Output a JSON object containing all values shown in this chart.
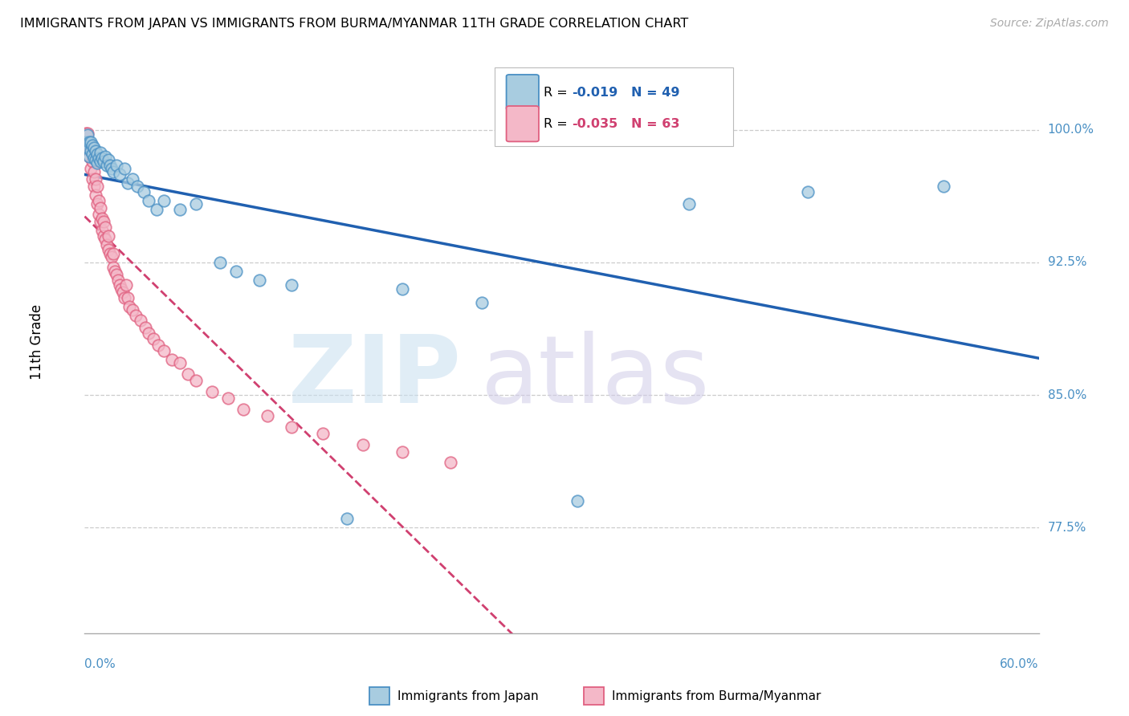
{
  "title": "IMMIGRANTS FROM JAPAN VS IMMIGRANTS FROM BURMA/MYANMAR 11TH GRADE CORRELATION CHART",
  "source": "Source: ZipAtlas.com",
  "ylabel": "11th Grade",
  "yaxis_labels": [
    "100.0%",
    "92.5%",
    "85.0%",
    "77.5%"
  ],
  "yaxis_values": [
    1.0,
    0.925,
    0.85,
    0.775
  ],
  "xmin": 0.0,
  "xmax": 0.6,
  "ymin": 0.715,
  "ymax": 1.045,
  "legend_r_japan": "-0.019",
  "legend_n_japan": "49",
  "legend_r_burma": "-0.035",
  "legend_n_burma": "63",
  "color_japan_fill": "#a8cce0",
  "color_japan_edge": "#4a90c4",
  "color_burma_fill": "#f4b8c8",
  "color_burma_edge": "#e06080",
  "color_japan_line": "#2060b0",
  "color_burma_line": "#d04070",
  "label_color": "#4a90c4",
  "japan_x": [
    0.001,
    0.002,
    0.002,
    0.003,
    0.003,
    0.004,
    0.004,
    0.005,
    0.005,
    0.006,
    0.006,
    0.007,
    0.007,
    0.008,
    0.008,
    0.009,
    0.01,
    0.01,
    0.011,
    0.012,
    0.013,
    0.014,
    0.015,
    0.016,
    0.017,
    0.018,
    0.02,
    0.022,
    0.025,
    0.027,
    0.03,
    0.033,
    0.037,
    0.04,
    0.045,
    0.05,
    0.06,
    0.07,
    0.085,
    0.095,
    0.11,
    0.13,
    0.165,
    0.2,
    0.25,
    0.31,
    0.38,
    0.455,
    0.54
  ],
  "japan_y": [
    0.993,
    0.99,
    0.997,
    0.985,
    0.993,
    0.988,
    0.993,
    0.986,
    0.991,
    0.984,
    0.99,
    0.983,
    0.988,
    0.981,
    0.986,
    0.984,
    0.982,
    0.987,
    0.984,
    0.982,
    0.985,
    0.98,
    0.983,
    0.98,
    0.978,
    0.976,
    0.98,
    0.975,
    0.978,
    0.97,
    0.972,
    0.968,
    0.965,
    0.96,
    0.955,
    0.96,
    0.955,
    0.958,
    0.925,
    0.92,
    0.915,
    0.912,
    0.78,
    0.91,
    0.902,
    0.79,
    0.958,
    0.965,
    0.968
  ],
  "burma_x": [
    0.001,
    0.002,
    0.002,
    0.003,
    0.003,
    0.004,
    0.004,
    0.005,
    0.005,
    0.006,
    0.006,
    0.007,
    0.007,
    0.008,
    0.008,
    0.009,
    0.009,
    0.01,
    0.01,
    0.011,
    0.011,
    0.012,
    0.012,
    0.013,
    0.013,
    0.014,
    0.015,
    0.015,
    0.016,
    0.017,
    0.018,
    0.018,
    0.019,
    0.02,
    0.021,
    0.022,
    0.023,
    0.024,
    0.025,
    0.026,
    0.027,
    0.028,
    0.03,
    0.032,
    0.035,
    0.038,
    0.04,
    0.043,
    0.046,
    0.05,
    0.055,
    0.06,
    0.065,
    0.07,
    0.08,
    0.09,
    0.1,
    0.115,
    0.13,
    0.15,
    0.175,
    0.2,
    0.23
  ],
  "burma_y": [
    0.998,
    0.992,
    0.998,
    0.985,
    0.992,
    0.978,
    0.988,
    0.972,
    0.982,
    0.968,
    0.976,
    0.963,
    0.972,
    0.958,
    0.968,
    0.952,
    0.96,
    0.948,
    0.956,
    0.943,
    0.95,
    0.94,
    0.948,
    0.938,
    0.945,
    0.935,
    0.932,
    0.94,
    0.93,
    0.928,
    0.922,
    0.93,
    0.92,
    0.918,
    0.915,
    0.912,
    0.91,
    0.908,
    0.905,
    0.912,
    0.905,
    0.9,
    0.898,
    0.895,
    0.892,
    0.888,
    0.885,
    0.882,
    0.878,
    0.875,
    0.87,
    0.868,
    0.862,
    0.858,
    0.852,
    0.848,
    0.842,
    0.838,
    0.832,
    0.828,
    0.822,
    0.818,
    0.812
  ]
}
